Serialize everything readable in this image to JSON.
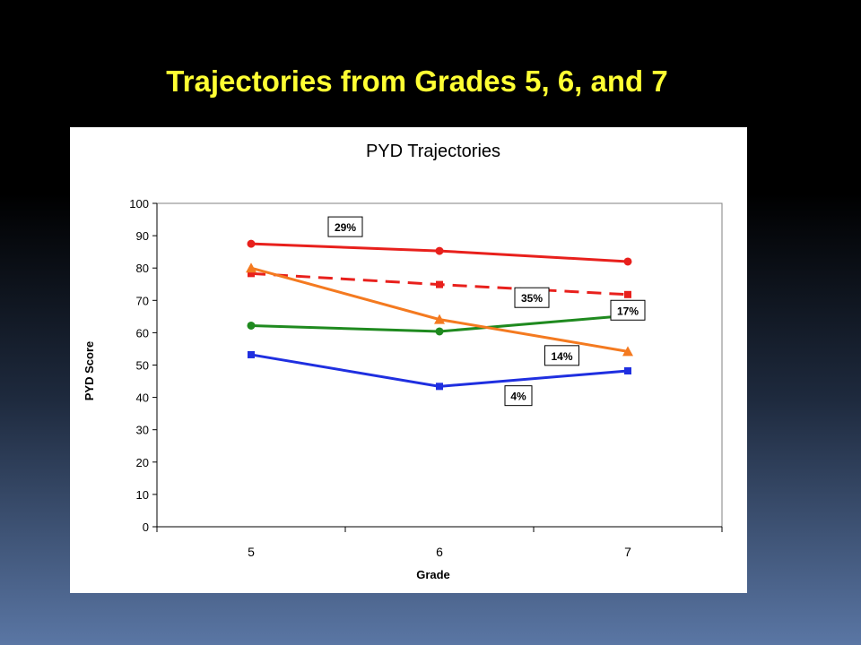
{
  "slide": {
    "title": "Trajectories from Grades 5, 6, and 7",
    "title_color": "#ffff33"
  },
  "chart_data": {
    "type": "line",
    "title": "PYD Trajectories",
    "xlabel": "Grade",
    "ylabel": "PYD Score",
    "categories": [
      "5",
      "6",
      "7"
    ],
    "ylim": [
      0,
      100
    ],
    "yticks": [
      0,
      10,
      20,
      30,
      40,
      50,
      60,
      70,
      80,
      90,
      100
    ],
    "grid": false,
    "series": [
      {
        "label": "29%",
        "color": "#e8201c",
        "marker": "circle",
        "dash": false,
        "values": [
          87.5,
          85.3,
          82.0
        ]
      },
      {
        "label": "35%",
        "color": "#e8201c",
        "marker": "square",
        "dash": true,
        "values": [
          78.3,
          74.9,
          71.8
        ]
      },
      {
        "label": "17%",
        "color": "#1f8a1f",
        "marker": "circle",
        "dash": false,
        "values": [
          62.2,
          60.4,
          65.3
        ]
      },
      {
        "label": "14%",
        "color": "#f47a20",
        "marker": "triangle",
        "dash": false,
        "values": [
          80.0,
          64.1,
          54.2
        ]
      },
      {
        "label": "4%",
        "color": "#1f2fe0",
        "marker": "square",
        "dash": false,
        "values": [
          53.2,
          43.4,
          48.2
        ]
      }
    ]
  }
}
